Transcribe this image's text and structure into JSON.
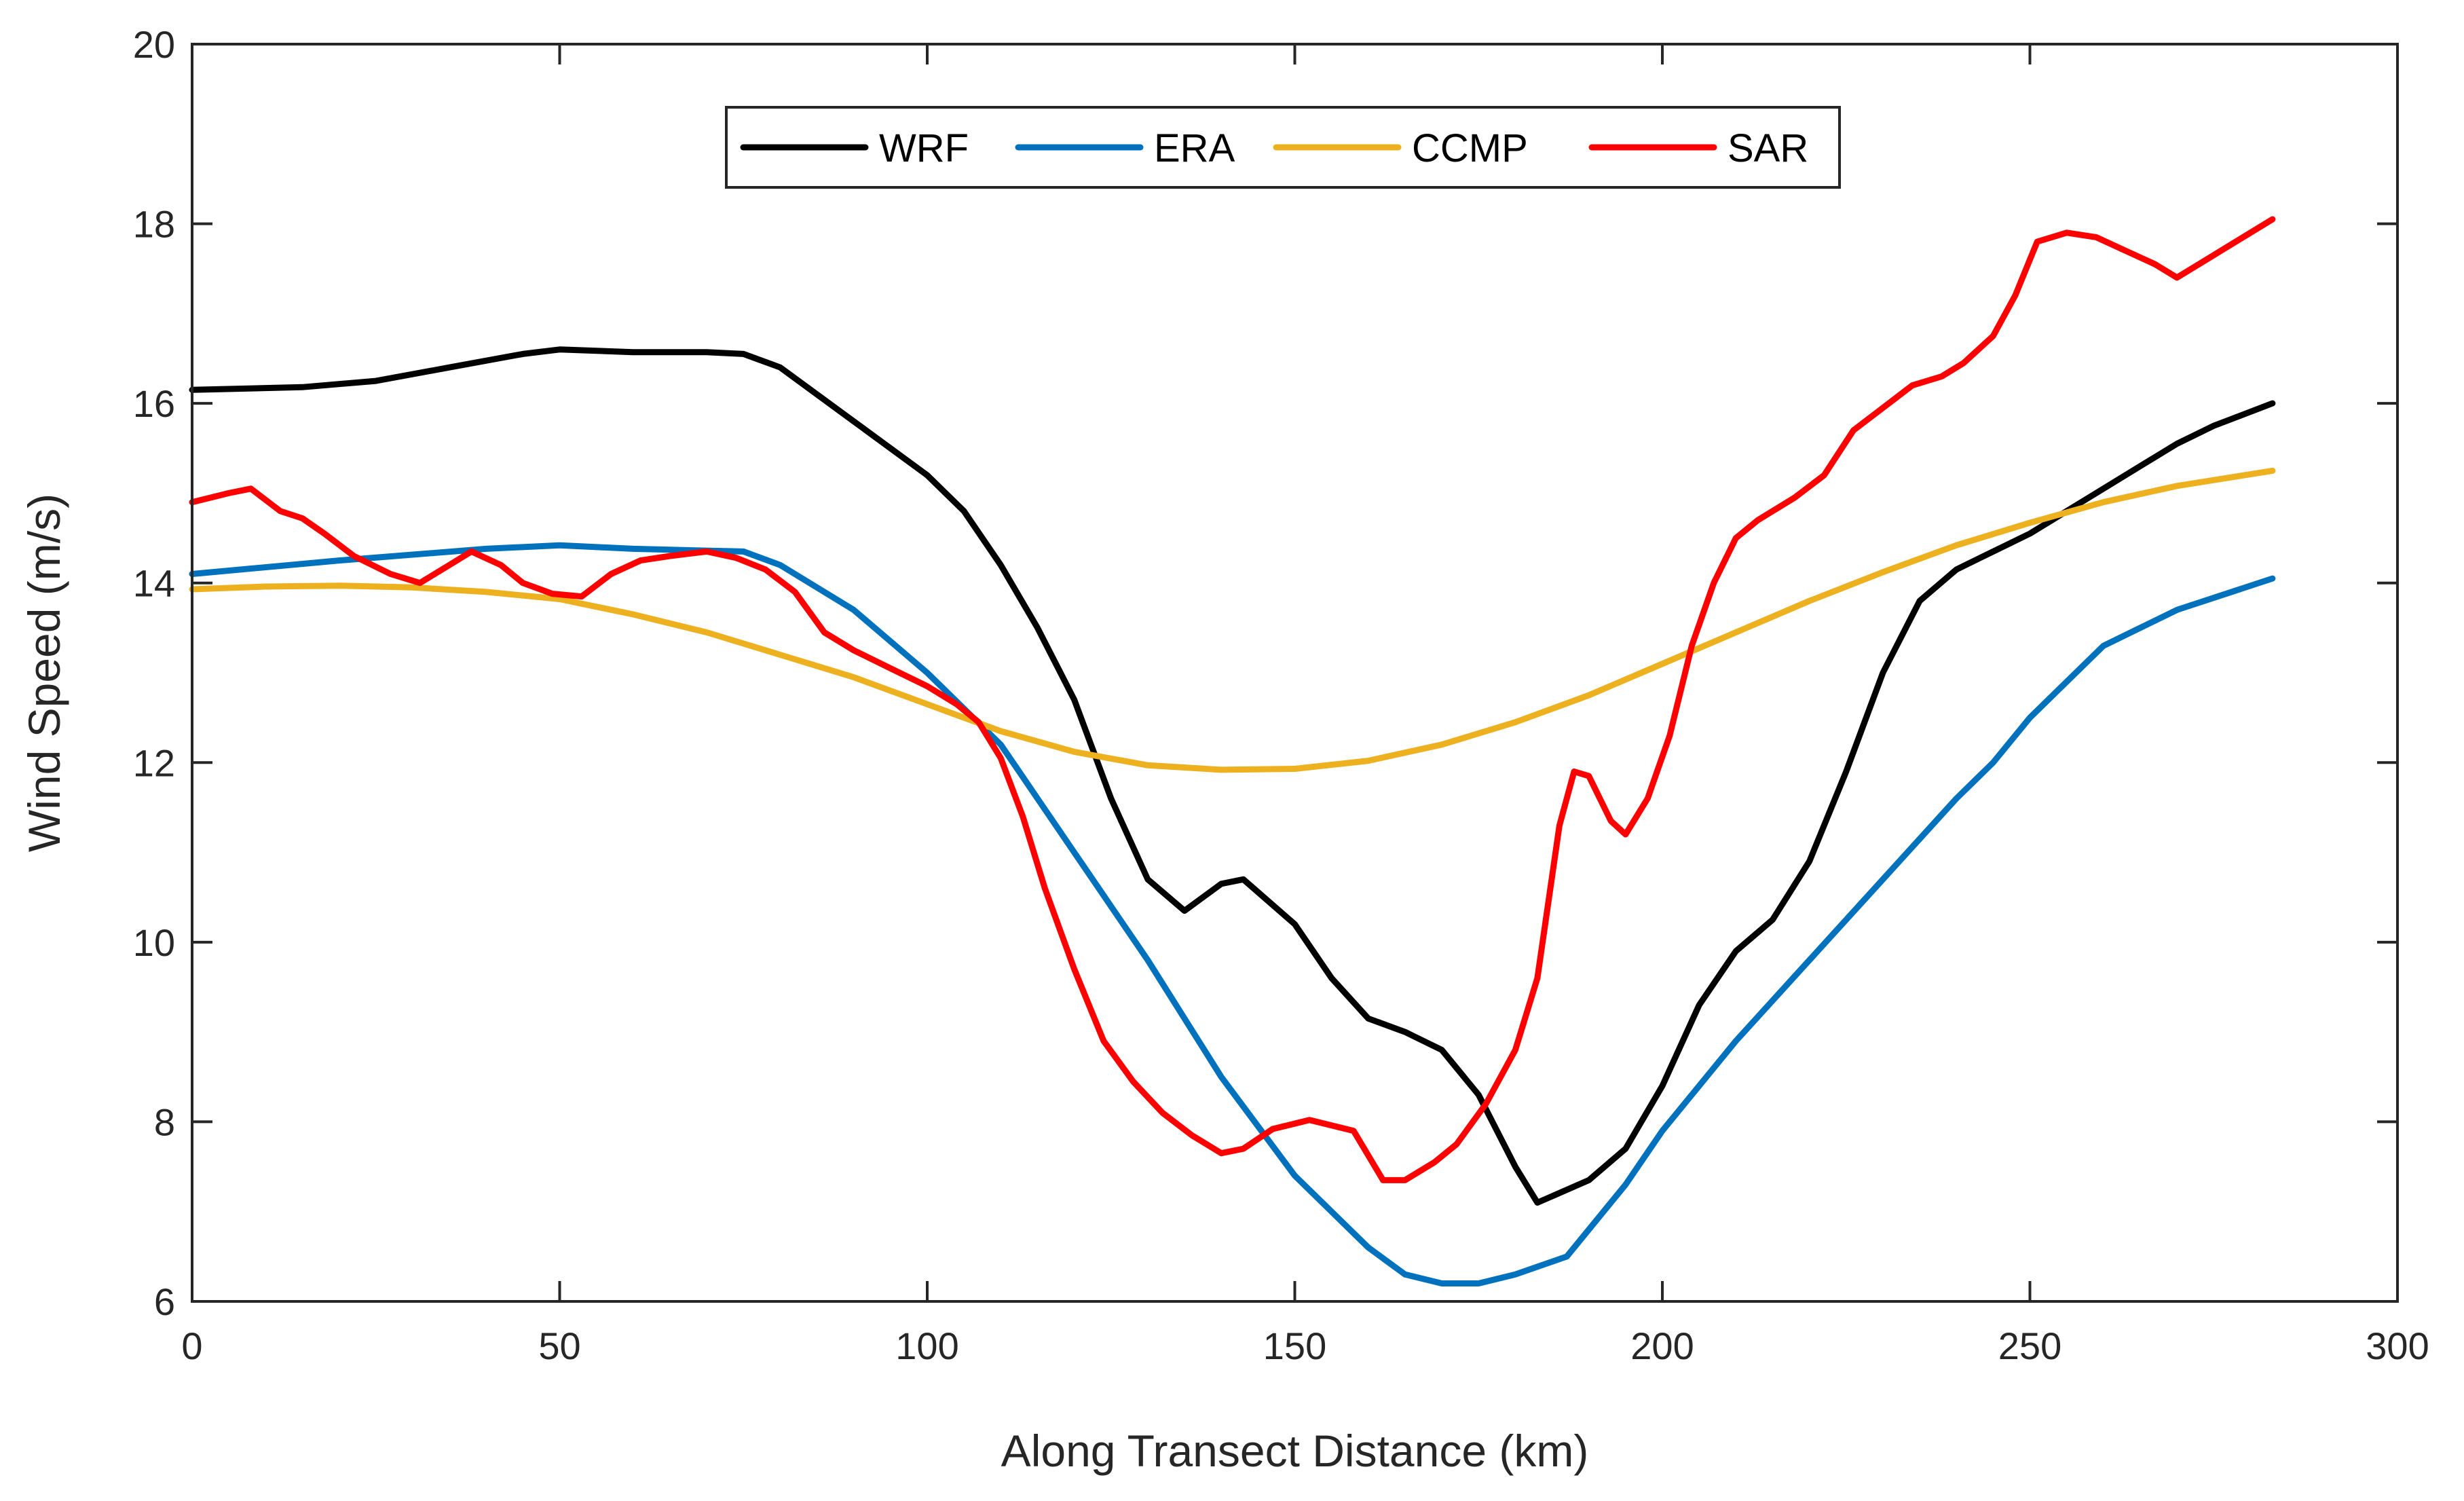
{
  "chart_data": {
    "type": "line",
    "title": "",
    "xlabel": "Along Transect Distance (km)",
    "ylabel": "Wind Speed (m/s)",
    "xlim": [
      0,
      300
    ],
    "ylim": [
      6,
      20
    ],
    "xticks": [
      0,
      50,
      100,
      150,
      200,
      250,
      300
    ],
    "yticks": [
      6,
      8,
      10,
      12,
      14,
      16,
      18,
      20
    ],
    "grid": false,
    "legend_position": "top-center",
    "series": [
      {
        "name": "WRF",
        "color": "#000000",
        "x": [
          0,
          15,
          25,
          35,
          45,
          50,
          60,
          70,
          75,
          80,
          90,
          100,
          105,
          110,
          115,
          120,
          125,
          130,
          135,
          140,
          143,
          150,
          155,
          160,
          165,
          170,
          175,
          180,
          183,
          190,
          195,
          200,
          205,
          210,
          215,
          220,
          225,
          230,
          235,
          240,
          245,
          250,
          255,
          260,
          265,
          270,
          275,
          283
        ],
        "y": [
          16.15,
          16.18,
          16.25,
          16.4,
          16.55,
          16.6,
          16.57,
          16.57,
          16.55,
          16.4,
          15.8,
          15.2,
          14.8,
          14.2,
          13.5,
          12.7,
          11.6,
          10.7,
          10.35,
          10.65,
          10.7,
          10.2,
          9.6,
          9.15,
          9.0,
          8.8,
          8.3,
          7.5,
          7.1,
          7.35,
          7.7,
          8.4,
          9.3,
          9.9,
          10.25,
          10.9,
          11.9,
          13.0,
          13.8,
          14.15,
          14.35,
          14.55,
          14.8,
          15.05,
          15.3,
          15.55,
          15.75,
          16.0
        ]
      },
      {
        "name": "ERA",
        "color": "#0072BD",
        "x": [
          0,
          20,
          40,
          50,
          60,
          70,
          75,
          80,
          90,
          100,
          105,
          110,
          120,
          130,
          140,
          150,
          160,
          165,
          170,
          175,
          180,
          187,
          195,
          200,
          210,
          220,
          230,
          240,
          245,
          250,
          260,
          270,
          283
        ],
        "y": [
          14.1,
          14.25,
          14.38,
          14.42,
          14.38,
          14.36,
          14.35,
          14.2,
          13.7,
          13.0,
          12.6,
          12.2,
          11.0,
          9.8,
          8.5,
          7.4,
          6.6,
          6.3,
          6.2,
          6.2,
          6.3,
          6.5,
          7.3,
          7.9,
          8.9,
          9.8,
          10.7,
          11.6,
          12.0,
          12.5,
          13.3,
          13.7,
          14.05
        ]
      },
      {
        "name": "CCMP",
        "color": "#EDB120",
        "x": [
          0,
          10,
          20,
          30,
          40,
          50,
          60,
          70,
          80,
          90,
          100,
          110,
          120,
          130,
          140,
          150,
          160,
          170,
          180,
          190,
          200,
          210,
          220,
          230,
          240,
          250,
          260,
          270,
          283
        ],
        "y": [
          13.93,
          13.96,
          13.97,
          13.95,
          13.9,
          13.82,
          13.65,
          13.45,
          13.2,
          12.95,
          12.65,
          12.35,
          12.12,
          11.97,
          11.92,
          11.93,
          12.02,
          12.2,
          12.45,
          12.75,
          13.1,
          13.45,
          13.8,
          14.12,
          14.42,
          14.67,
          14.9,
          15.08,
          15.25
        ]
      },
      {
        "name": "SAR",
        "color": "#FF0000",
        "x": [
          0,
          5,
          8,
          12,
          15,
          18,
          22,
          27,
          31,
          35,
          38,
          42,
          45,
          49,
          53,
          57,
          61,
          65,
          70,
          74,
          78,
          82,
          86,
          90,
          95,
          100,
          104,
          107,
          110,
          113,
          116,
          120,
          124,
          128,
          132,
          136,
          140,
          143,
          147,
          152,
          158,
          162,
          165,
          169,
          172,
          176,
          180,
          183,
          186,
          188,
          190,
          193,
          195,
          198,
          201,
          204,
          207,
          210,
          213,
          218,
          222,
          226,
          230,
          234,
          238,
          241,
          245,
          248,
          251,
          255,
          259,
          263,
          267,
          270,
          274,
          279,
          283
        ],
        "y": [
          14.9,
          15.0,
          15.05,
          14.8,
          14.72,
          14.55,
          14.3,
          14.1,
          14.0,
          14.2,
          14.35,
          14.2,
          14.0,
          13.88,
          13.85,
          14.1,
          14.25,
          14.3,
          14.35,
          14.28,
          14.15,
          13.9,
          13.45,
          13.25,
          13.05,
          12.85,
          12.65,
          12.45,
          12.05,
          11.4,
          10.6,
          9.7,
          8.9,
          8.45,
          8.1,
          7.85,
          7.65,
          7.7,
          7.92,
          8.02,
          7.9,
          7.35,
          7.35,
          7.55,
          7.75,
          8.2,
          8.8,
          9.6,
          11.3,
          11.9,
          11.85,
          11.35,
          11.2,
          11.6,
          12.3,
          13.3,
          14.0,
          14.5,
          14.7,
          14.95,
          15.2,
          15.7,
          15.95,
          16.2,
          16.3,
          16.45,
          16.75,
          17.2,
          17.8,
          17.9,
          17.85,
          17.7,
          17.55,
          17.4,
          17.6,
          17.85,
          18.05
        ]
      }
    ]
  }
}
